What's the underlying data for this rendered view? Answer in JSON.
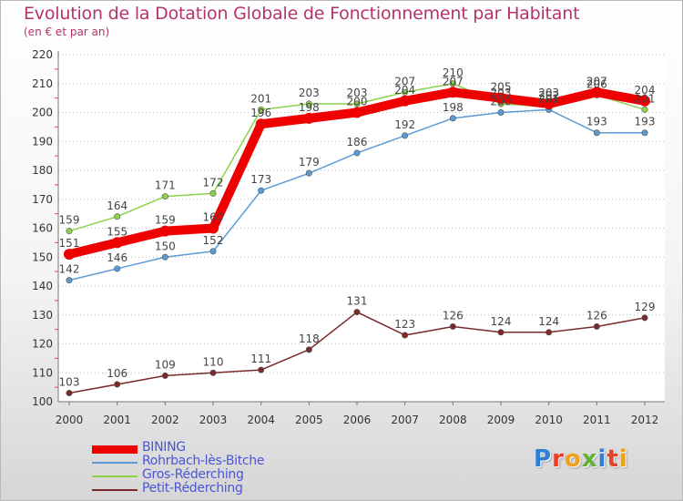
{
  "chart_data": {
    "type": "line",
    "title": "Evolution de la Dotation Globale de Fonctionnement par Habitant",
    "subtitle": "(en € et par an)",
    "xlabel": "",
    "ylabel": "",
    "ylim": [
      100,
      220
    ],
    "yticks": [
      100,
      110,
      120,
      130,
      140,
      150,
      160,
      170,
      180,
      190,
      200,
      210,
      220
    ],
    "x": [
      "2000",
      "2001",
      "2002",
      "2003",
      "2004",
      "2005",
      "2006",
      "2007",
      "2008",
      "2009",
      "2010",
      "2011",
      "2012"
    ],
    "grid": "horizontal dotted",
    "legend_position": "bottom-left",
    "series": [
      {
        "name": "BINING",
        "color": "#ee0000",
        "values": [
          151,
          155,
          159,
          160,
          196,
          198,
          200,
          204,
          207,
          205,
          203,
          207,
          204
        ]
      },
      {
        "name": "Rohrbach-lès-Bitche",
        "color": "#5b9bd5",
        "values": [
          142,
          146,
          150,
          152,
          173,
          179,
          186,
          192,
          198,
          200,
          201,
          193,
          193
        ]
      },
      {
        "name": "Gros-Réderching",
        "color": "#8ed14a",
        "values": [
          159,
          164,
          171,
          172,
          201,
          203,
          203,
          207,
          210,
          203,
          202,
          206,
          201
        ]
      },
      {
        "name": "Petit-Réderching",
        "color": "#7a2a2a",
        "values": [
          103,
          106,
          109,
          110,
          111,
          118,
          131,
          123,
          126,
          124,
          124,
          126,
          129
        ]
      }
    ]
  },
  "logo": {
    "letters": [
      "P",
      "r",
      "o",
      "x",
      "i",
      "t",
      "i"
    ],
    "colors": [
      "#2e7fd6",
      "#e4412b",
      "#f0a21d",
      "#62b036",
      "#2e7fd6",
      "#e4412b",
      "#f0a21d"
    ]
  }
}
